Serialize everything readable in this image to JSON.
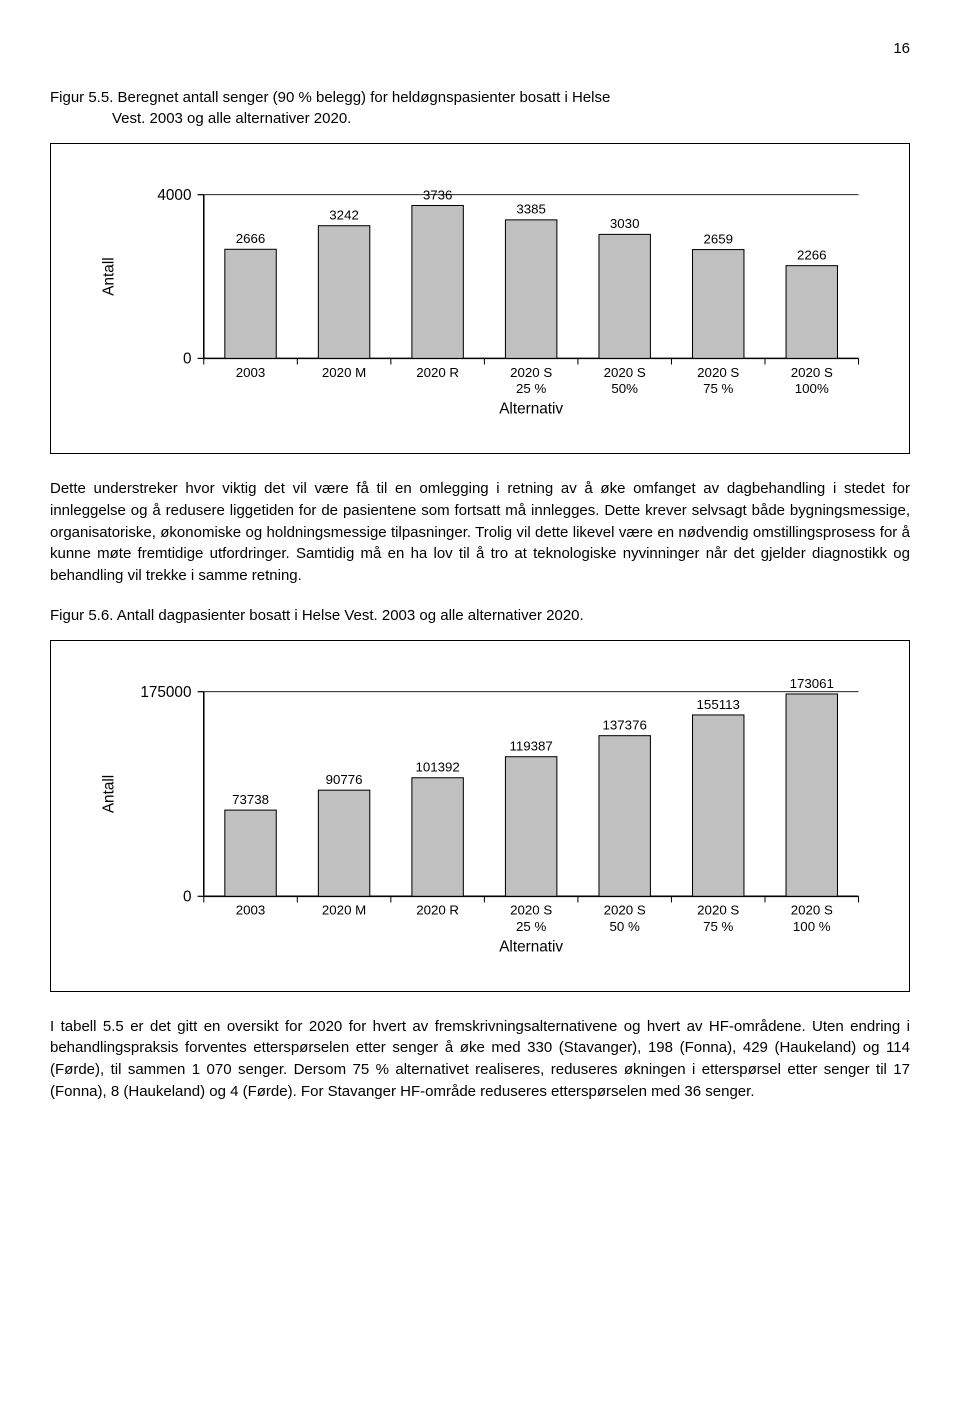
{
  "page_number": "16",
  "fig55_title_line1": "Figur 5.5. Beregnet antall senger (90 % belegg) for heldøgnspasienter bosatt i Helse",
  "fig55_title_line2": "Vest. 2003 og alle alternativer 2020.",
  "fig56_title": "Figur 5.6. Antall dagpasienter bosatt i Helse Vest. 2003 og alle alternativer 2020.",
  "chart1": {
    "type": "bar",
    "ylabel": "Antall",
    "xlabel": "Alternativ",
    "categories": [
      "2003",
      "2020 M",
      "2020 R",
      "2020 S 25 %",
      "2020 S 50%",
      "2020 S 75 %",
      "2020 S 100%"
    ],
    "values": [
      2666,
      3242,
      3736,
      3385,
      3030,
      2659,
      2266
    ],
    "ymax": 4000,
    "ytick0": "0",
    "ytick1": "4000",
    "bar_fill": "#c0c0c0",
    "bar_stroke": "#000000",
    "grid_color": "#000000",
    "bg": "#ffffff",
    "label_fontsize": 13,
    "value_fontsize": 13,
    "axis_fontsize": 15
  },
  "chart2": {
    "type": "bar",
    "ylabel": "Antall",
    "xlabel": "Alternativ",
    "categories": [
      "2003",
      "2020 M",
      "2020 R",
      "2020 S 25 %",
      "2020 S 50 %",
      "2020 S 75 %",
      "2020 S 100 %"
    ],
    "values": [
      73738,
      90776,
      101392,
      119387,
      137376,
      155113,
      173061
    ],
    "ymax": 175000,
    "ytick0": "0",
    "ytick1": "175000",
    "bar_fill": "#c0c0c0",
    "bar_stroke": "#000000",
    "grid_color": "#000000",
    "bg": "#ffffff",
    "label_fontsize": 13,
    "value_fontsize": 13,
    "axis_fontsize": 15
  },
  "para1": "Dette understreker hvor viktig det vil være få til en omlegging i retning av å øke omfanget av dagbehandling i stedet for innleggelse og å redusere liggetiden for de pasientene som fortsatt må innlegges. Dette krever selvsagt både bygningsmessige, organisatoriske, økonomiske og holdningsmessige tilpasninger. Trolig vil dette likevel være en nødvendig omstillingsprosess for å kunne møte fremtidige utfordringer. Samtidig må en ha lov til å tro at teknologiske nyvinninger når det gjelder diagnostikk og behandling vil trekke i samme retning.",
  "para2": "I tabell 5.5 er det gitt en oversikt for 2020 for hvert av fremskrivningsalternativene og hvert av HF-områdene. Uten endring i behandlingspraksis forventes etterspørselen etter senger å øke med 330 (Stavanger), 198 (Fonna), 429 (Haukeland) og 114 (Førde), til sammen 1 070 senger. Dersom 75 % alternativet realiseres, reduseres økningen i etterspørsel etter senger til 17 (Fonna), 8 (Haukeland) og 4 (Førde). For Stavanger HF-område reduseres etterspørselen med 36 senger."
}
